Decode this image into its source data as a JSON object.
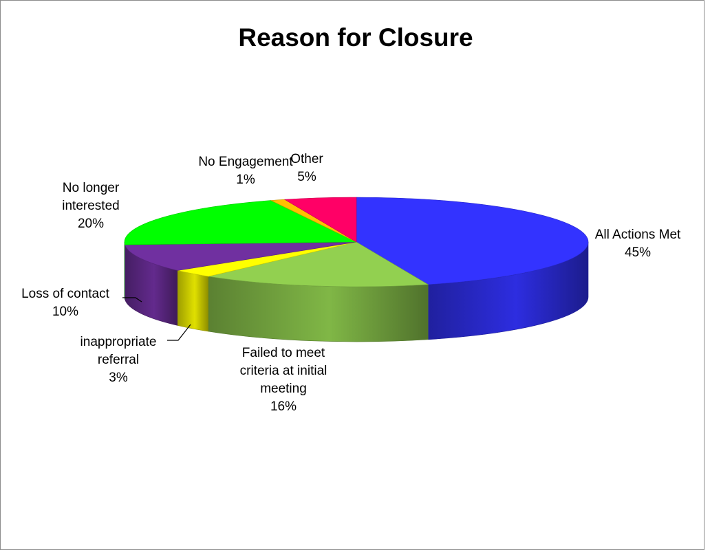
{
  "chart_data": {
    "type": "pie",
    "style": "3d-exploded-pie",
    "title": "Reason for Closure",
    "categories": [
      "All Actions Met",
      "Failed to meet criteria at initial meeting",
      "inappropriate referral",
      "Loss of contact",
      "No longer interested",
      "No Engagement",
      "Other"
    ],
    "values": [
      45,
      16,
      3,
      10,
      20,
      1,
      5
    ],
    "value_labels": [
      "45%",
      "16%",
      "3%",
      "10%",
      "20%",
      "1%",
      "5%"
    ],
    "label_lines": [
      [
        "All Actions Met"
      ],
      [
        "Failed to meet",
        "criteria at initial",
        "meeting"
      ],
      [
        "inappropriate",
        "referral"
      ],
      [
        "Loss of contact"
      ],
      [
        "No longer",
        "interested"
      ],
      [
        "No Engagement"
      ],
      [
        "Other"
      ]
    ],
    "colors": [
      "#3333ff",
      "#92d050",
      "#ffff00",
      "#7030a0",
      "#00ff00",
      "#ffc000",
      "#ff0066"
    ],
    "legend": "none",
    "data_labels": "category-and-percent"
  }
}
